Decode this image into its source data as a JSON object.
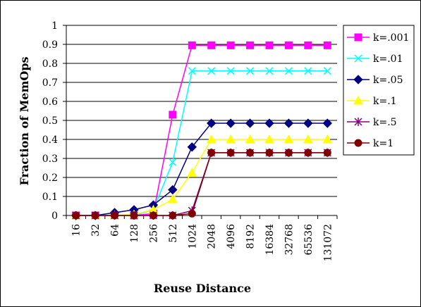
{
  "chart_data": {
    "type": "line",
    "title": "",
    "xlabel": "Reuse Distance",
    "ylabel": "Fraction of MemOps",
    "categories": [
      "16",
      "32",
      "64",
      "128",
      "256",
      "512",
      "1024",
      "2048",
      "4096",
      "8192",
      "16384",
      "32768",
      "65536",
      "131072"
    ],
    "yticks": [
      "0",
      "0.1",
      "0.2",
      "0.3",
      "0.4",
      "0.5",
      "0.6",
      "0.7",
      "0.8",
      "0.9",
      "1"
    ],
    "ylim": [
      0,
      1
    ],
    "grid": "horizontal",
    "legend_position": "right",
    "series": [
      {
        "name": "k=.001",
        "color": "#ff00ff",
        "marker": "square",
        "values": [
          0,
          0,
          0,
          0,
          0.01,
          0.53,
          0.895,
          0.895,
          0.895,
          0.895,
          0.895,
          0.895,
          0.895,
          0.895
        ]
      },
      {
        "name": "k=.01",
        "color": "#00ffff",
        "marker": "x",
        "values": [
          0,
          0,
          0,
          0,
          0.03,
          0.28,
          0.76,
          0.76,
          0.76,
          0.76,
          0.76,
          0.76,
          0.76,
          0.76
        ]
      },
      {
        "name": "k=.05",
        "color": "#000080",
        "marker": "diamond",
        "values": [
          0,
          0,
          0.015,
          0.03,
          0.055,
          0.135,
          0.36,
          0.485,
          0.485,
          0.485,
          0.485,
          0.485,
          0.485,
          0.485
        ]
      },
      {
        "name": "k=.1",
        "color": "#ffff00",
        "marker": "triangle",
        "values": [
          0,
          0,
          0,
          0.005,
          0.03,
          0.085,
          0.225,
          0.4,
          0.4,
          0.4,
          0.4,
          0.4,
          0.4,
          0.4
        ]
      },
      {
        "name": "k=.5",
        "color": "#800080",
        "marker": "star",
        "values": [
          0,
          0,
          0,
          0,
          0,
          0,
          0.025,
          0.33,
          0.33,
          0.33,
          0.33,
          0.33,
          0.33,
          0.33
        ]
      },
      {
        "name": "k=1",
        "color": "#800000",
        "marker": "circle",
        "values": [
          0,
          0,
          0,
          0,
          0,
          0,
          0.01,
          0.33,
          0.33,
          0.33,
          0.33,
          0.33,
          0.33,
          0.33
        ]
      }
    ]
  }
}
